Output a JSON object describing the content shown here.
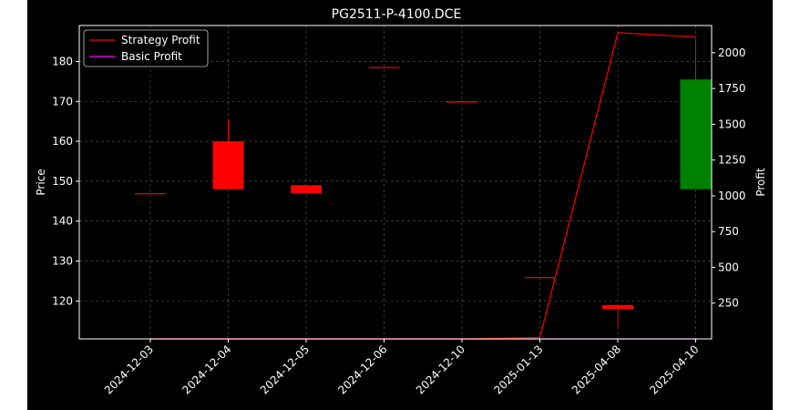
{
  "chart_data": {
    "type": "candlestick",
    "title": "PG2511-P-4100.DCE",
    "xlabel": "",
    "ylabel": "Price",
    "y2label": "Profit",
    "categories": [
      "2024-12-03",
      "2024-12-04",
      "2024-12-05",
      "2024-12-06",
      "2024-12-10",
      "2025-01-13",
      "2025-04-08",
      "2025-04-10"
    ],
    "ylim": [
      110.5,
      189
    ],
    "y2lim": [
      0,
      2190
    ],
    "yticks": [
      120,
      130,
      140,
      150,
      160,
      170,
      180
    ],
    "y2ticks": [
      250,
      500,
      750,
      1000,
      1250,
      1500,
      1750,
      2000
    ],
    "grid": true,
    "legend_position": "top-left",
    "candles": [
      {
        "date": "2024-12-03",
        "open": 147.0,
        "high": 147.0,
        "low": 147.0,
        "close": 147.0,
        "color": "#ff0000"
      },
      {
        "date": "2024-12-04",
        "open": 160.0,
        "high": 165.5,
        "low": 148.0,
        "close": 148.0,
        "color": "#ff0000"
      },
      {
        "date": "2024-12-05",
        "open": 149.0,
        "high": 149.0,
        "low": 147.0,
        "close": 147.0,
        "color": "#ff0000"
      },
      {
        "date": "2024-12-06",
        "open": 178.6,
        "high": 178.6,
        "low": 178.6,
        "close": 178.6,
        "color": "#ff0000"
      },
      {
        "date": "2024-12-10",
        "open": 170.0,
        "high": 170.0,
        "low": 170.0,
        "close": 170.0,
        "color": "#ff0000"
      },
      {
        "date": "2025-01-13",
        "open": 126.0,
        "high": 126.0,
        "low": 126.0,
        "close": 126.0,
        "color": "#ff0000"
      },
      {
        "date": "2025-04-08",
        "open": 119.0,
        "high": 119.0,
        "low": 113.5,
        "close": 118.0,
        "color": "#ff0000"
      },
      {
        "date": "2025-04-10",
        "open": 148.0,
        "high": 185.5,
        "low": 148.0,
        "close": 175.5,
        "color": "#008000"
      }
    ],
    "series": [
      {
        "name": "Strategy Profit",
        "color": "#ff0000",
        "values": [
          0,
          0,
          0,
          0,
          0,
          10,
          2140,
          2110
        ]
      },
      {
        "name": "Basic Profit",
        "color": "#ff00ff",
        "values": [
          0,
          0,
          0,
          0,
          0,
          0,
          0,
          0
        ]
      }
    ]
  }
}
